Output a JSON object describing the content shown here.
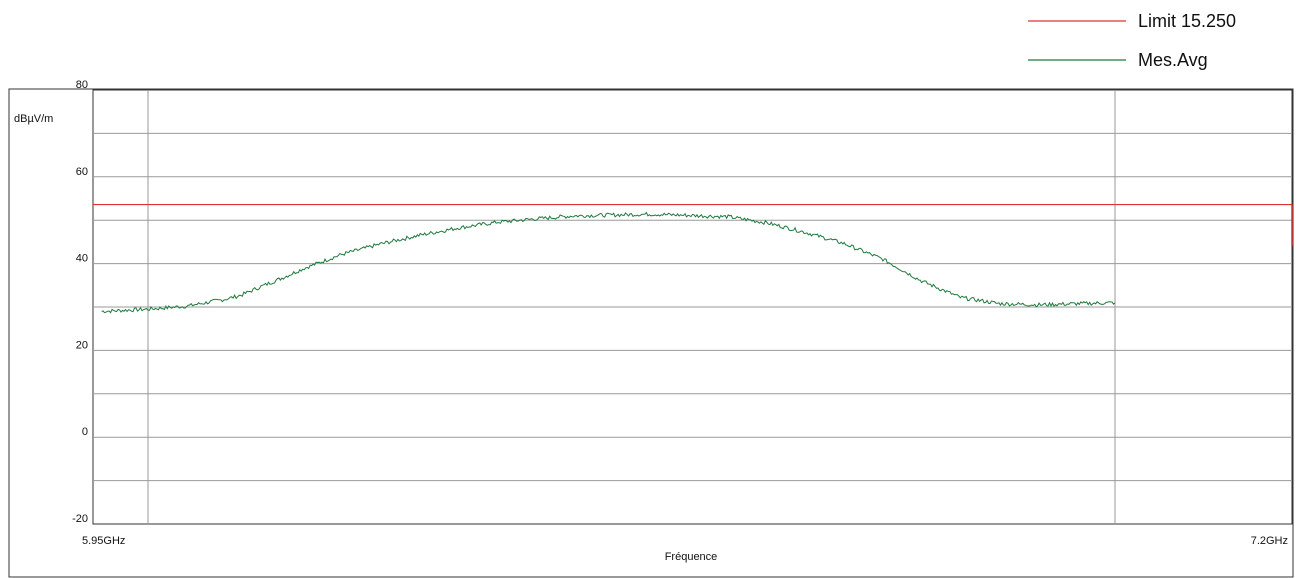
{
  "chart_data": {
    "type": "line",
    "title": "",
    "xlabel": "Fréquence",
    "ylabel": "dBµV/m",
    "x_start_label": "5.95GHz",
    "x_end_label": "7.2GHz",
    "xlim": [
      5.95,
      7.2
    ],
    "ylim": [
      -20,
      80
    ],
    "y_ticks": [
      {
        "value": 80,
        "label": "80"
      },
      {
        "value": 60,
        "label": "60"
      },
      {
        "value": 40,
        "label": "40"
      },
      {
        "value": 20,
        "label": "20"
      },
      {
        "value": 0,
        "label": "0"
      },
      {
        "value": -20,
        "label": "-20"
      }
    ],
    "grid": true,
    "legend_position": "top-right",
    "series": [
      {
        "name": "Limit 15.250",
        "color": "#e0322e",
        "x": [
          5.89,
          7.2
        ],
        "y": [
          53.6,
          53.6
        ]
      },
      {
        "name": "Mes.Avg",
        "color": "#1e7a3c",
        "x": [
          5.89,
          5.95,
          6.0,
          6.05,
          6.07,
          6.1,
          6.125,
          6.15,
          6.2,
          6.25,
          6.3,
          6.35,
          6.4,
          6.45,
          6.5,
          6.6,
          6.7,
          6.75,
          6.8,
          6.85,
          6.9,
          6.95,
          7.0,
          7.05,
          7.1,
          7.2
        ],
        "y": [
          29.0,
          29.5,
          30.2,
          31.8,
          32.7,
          35.0,
          36.8,
          38.8,
          42.1,
          44.5,
          46.5,
          48.2,
          49.5,
          50.3,
          51.0,
          51.4,
          50.8,
          49.4,
          47.2,
          44.6,
          41.0,
          36.0,
          32.2,
          30.8,
          30.5,
          31.0
        ]
      }
    ]
  }
}
